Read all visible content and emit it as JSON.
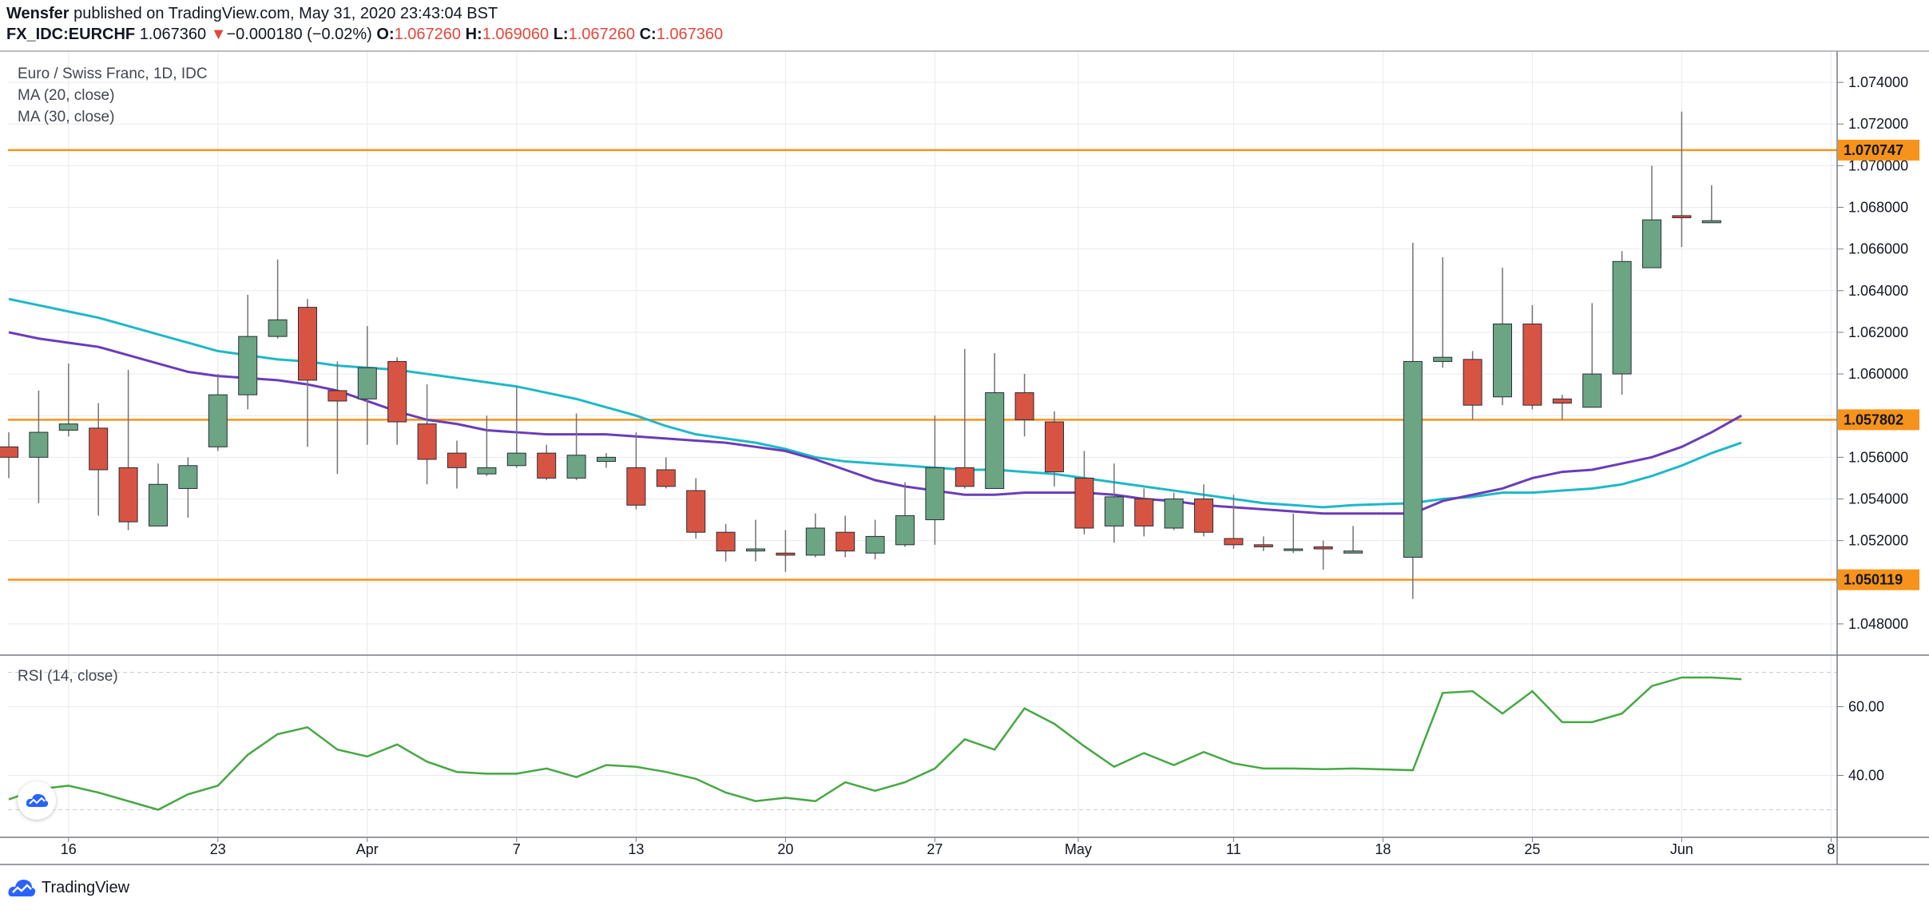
{
  "header": {
    "author": "Wensfer",
    "published_text": "published on TradingView.com, May 31, 2020 23:43:04 BST",
    "symbol": "FX_IDC:EURCHF",
    "timeframe": "1D",
    "last": "1.067360",
    "change_arrow": "▼",
    "change": "−0.000180 (−0.02%)",
    "o_label": "O:",
    "o_value": "1.067260",
    "h_label": "H:",
    "h_value": "1.069060",
    "l_label": "L:",
    "l_value": "1.067260",
    "c_label": "C:",
    "c_value": "1.067360"
  },
  "legend": {
    "title": "Euro / Swiss Franc, 1D, IDC",
    "ma20": "MA (20, close)",
    "ma30": "MA (30, close)",
    "rsi": "RSI (14, close)"
  },
  "brand": {
    "name": "TradingView"
  },
  "colors": {
    "up": "#6ba583",
    "down": "#d75442",
    "wick": "#737375",
    "ma20": "#6a3db8",
    "ma30": "#1fb8c8",
    "rsi": "#46a843",
    "hline": "#f7931a",
    "grid": "#e8eaee"
  },
  "chart_data": [
    {
      "type": "candlestick",
      "title": "Euro / Swiss Franc, 1D, IDC",
      "ylim": [
        1.0465,
        1.0755
      ],
      "y_ticks": [
        "1.048000",
        "1.050000",
        "1.052000",
        "1.054000",
        "1.056000",
        "1.058000",
        "1.060000",
        "1.062000",
        "1.064000",
        "1.066000",
        "1.068000",
        "1.070000",
        "1.072000",
        "1.074000"
      ],
      "x_ticks": [
        "16",
        "23",
        "Apr",
        "7",
        "13",
        "20",
        "27",
        "May",
        "11",
        "18",
        "25",
        "Jun",
        "8"
      ],
      "horizontal_levels": [
        "1.070747",
        "1.057802",
        "1.050119"
      ],
      "candles": [
        {
          "d": "2020-03-12",
          "o": 1.0565,
          "h": 1.0572,
          "l": 1.055,
          "c": 1.056
        },
        {
          "d": "2020-03-13",
          "o": 1.056,
          "h": 1.0592,
          "l": 1.0538,
          "c": 1.0572
        },
        {
          "d": "2020-03-16",
          "o": 1.0573,
          "h": 1.0605,
          "l": 1.057,
          "c": 1.0576
        },
        {
          "d": "2020-03-17",
          "o": 1.0574,
          "h": 1.0586,
          "l": 1.0532,
          "c": 1.0554
        },
        {
          "d": "2020-03-18",
          "o": 1.0555,
          "h": 1.0602,
          "l": 1.0525,
          "c": 1.0529
        },
        {
          "d": "2020-03-19",
          "o": 1.0527,
          "h": 1.0557,
          "l": 1.0527,
          "c": 1.0547
        },
        {
          "d": "2020-03-20",
          "o": 1.0545,
          "h": 1.056,
          "l": 1.0531,
          "c": 1.0556
        },
        {
          "d": "2020-03-23",
          "o": 1.0565,
          "h": 1.06,
          "l": 1.0563,
          "c": 1.059
        },
        {
          "d": "2020-03-24",
          "o": 1.059,
          "h": 1.0638,
          "l": 1.0583,
          "c": 1.0618
        },
        {
          "d": "2020-03-25",
          "o": 1.0618,
          "h": 1.0655,
          "l": 1.0617,
          "c": 1.0626
        },
        {
          "d": "2020-03-26",
          "o": 1.0632,
          "h": 1.0636,
          "l": 1.0565,
          "c": 1.0597
        },
        {
          "d": "2020-03-27",
          "o": 1.0592,
          "h": 1.0606,
          "l": 1.0552,
          "c": 1.0587
        },
        {
          "d": "2020-03-30",
          "o": 1.0588,
          "h": 1.0623,
          "l": 1.0566,
          "c": 1.0603
        },
        {
          "d": "2020-03-31",
          "o": 1.0606,
          "h": 1.0608,
          "l": 1.0566,
          "c": 1.0577
        },
        {
          "d": "2020-04-01",
          "o": 1.0576,
          "h": 1.0595,
          "l": 1.0547,
          "c": 1.0559
        },
        {
          "d": "2020-04-02",
          "o": 1.0562,
          "h": 1.0568,
          "l": 1.0545,
          "c": 1.0555
        },
        {
          "d": "2020-04-03",
          "o": 1.0552,
          "h": 1.058,
          "l": 1.0551,
          "c": 1.0555
        },
        {
          "d": "2020-04-06",
          "o": 1.0556,
          "h": 1.0594,
          "l": 1.0555,
          "c": 1.0562
        },
        {
          "d": "2020-04-07",
          "o": 1.0562,
          "h": 1.0566,
          "l": 1.0549,
          "c": 1.055
        },
        {
          "d": "2020-04-08",
          "o": 1.055,
          "h": 1.0581,
          "l": 1.0549,
          "c": 1.0561
        },
        {
          "d": "2020-04-09",
          "o": 1.0558,
          "h": 1.0562,
          "l": 1.0555,
          "c": 1.056
        },
        {
          "d": "2020-04-10",
          "o": 1.0555,
          "h": 1.0572,
          "l": 1.0535,
          "c": 1.0537
        },
        {
          "d": "2020-04-13",
          "o": 1.0554,
          "h": 1.056,
          "l": 1.0545,
          "c": 1.0546
        },
        {
          "d": "2020-04-14",
          "o": 1.0544,
          "h": 1.055,
          "l": 1.0521,
          "c": 1.0524
        },
        {
          "d": "2020-04-15",
          "o": 1.0524,
          "h": 1.0528,
          "l": 1.051,
          "c": 1.0515
        },
        {
          "d": "2020-04-16",
          "o": 1.0515,
          "h": 1.053,
          "l": 1.051,
          "c": 1.0516
        },
        {
          "d": "2020-04-17",
          "o": 1.0514,
          "h": 1.0525,
          "l": 1.0505,
          "c": 1.0513
        },
        {
          "d": "2020-04-20",
          "o": 1.0513,
          "h": 1.0533,
          "l": 1.0512,
          "c": 1.0526
        },
        {
          "d": "2020-04-21",
          "o": 1.0524,
          "h": 1.0532,
          "l": 1.0512,
          "c": 1.0515
        },
        {
          "d": "2020-04-22",
          "o": 1.0514,
          "h": 1.053,
          "l": 1.0511,
          "c": 1.0522
        },
        {
          "d": "2020-04-23",
          "o": 1.0518,
          "h": 1.0548,
          "l": 1.0517,
          "c": 1.0532
        },
        {
          "d": "2020-04-24",
          "o": 1.053,
          "h": 1.058,
          "l": 1.0518,
          "c": 1.0555
        },
        {
          "d": "2020-04-27",
          "o": 1.0555,
          "h": 1.0612,
          "l": 1.0545,
          "c": 1.0546
        },
        {
          "d": "2020-04-28",
          "o": 1.0545,
          "h": 1.061,
          "l": 1.0545,
          "c": 1.0591
        },
        {
          "d": "2020-04-29",
          "o": 1.0591,
          "h": 1.06,
          "l": 1.057,
          "c": 1.0578
        },
        {
          "d": "2020-04-30",
          "o": 1.0577,
          "h": 1.0582,
          "l": 1.0546,
          "c": 1.0553
        },
        {
          "d": "2020-05-01",
          "o": 1.055,
          "h": 1.0563,
          "l": 1.0523,
          "c": 1.0526
        },
        {
          "d": "2020-05-04",
          "o": 1.0527,
          "h": 1.0557,
          "l": 1.0519,
          "c": 1.0541
        },
        {
          "d": "2020-05-05",
          "o": 1.054,
          "h": 1.0545,
          "l": 1.0522,
          "c": 1.0527
        },
        {
          "d": "2020-05-06",
          "o": 1.0526,
          "h": 1.0543,
          "l": 1.0525,
          "c": 1.054
        },
        {
          "d": "2020-05-07",
          "o": 1.054,
          "h": 1.0547,
          "l": 1.0522,
          "c": 1.0524
        },
        {
          "d": "2020-05-08",
          "o": 1.0521,
          "h": 1.0542,
          "l": 1.0516,
          "c": 1.0518
        },
        {
          "d": "2020-05-11",
          "o": 1.0518,
          "h": 1.0522,
          "l": 1.0515,
          "c": 1.0517
        },
        {
          "d": "2020-05-12",
          "o": 1.0516,
          "h": 1.0533,
          "l": 1.0514,
          "c": 1.0516
        },
        {
          "d": "2020-05-13",
          "o": 1.0517,
          "h": 1.052,
          "l": 1.0506,
          "c": 1.0516
        },
        {
          "d": "2020-05-14",
          "o": 1.0514,
          "h": 1.0527,
          "l": 1.0514,
          "c": 1.0515
        },
        {
          "d": "2020-05-18",
          "o": 1.0512,
          "h": 1.0663,
          "l": 1.0492,
          "c": 1.0606
        },
        {
          "d": "2020-05-19",
          "o": 1.0606,
          "h": 1.0656,
          "l": 1.0603,
          "c": 1.0608
        },
        {
          "d": "2020-05-20",
          "o": 1.0607,
          "h": 1.0611,
          "l": 1.0578,
          "c": 1.0585
        },
        {
          "d": "2020-05-21",
          "o": 1.0589,
          "h": 1.0651,
          "l": 1.0585,
          "c": 1.0624
        },
        {
          "d": "2020-05-22",
          "o": 1.0624,
          "h": 1.0633,
          "l": 1.0583,
          "c": 1.0585
        },
        {
          "d": "2020-05-25",
          "o": 1.0588,
          "h": 1.059,
          "l": 1.0578,
          "c": 1.0586
        },
        {
          "d": "2020-05-26",
          "o": 1.0584,
          "h": 1.0634,
          "l": 1.0584,
          "c": 1.06
        },
        {
          "d": "2020-05-27",
          "o": 1.06,
          "h": 1.0659,
          "l": 1.059,
          "c": 1.0654
        },
        {
          "d": "2020-05-28",
          "o": 1.0651,
          "h": 1.07,
          "l": 1.0651,
          "c": 1.0674
        },
        {
          "d": "2020-05-29",
          "o": 1.0676,
          "h": 1.0726,
          "l": 1.0661,
          "c": 1.0675
        },
        {
          "d": "2020-05-31",
          "o": 1.06726,
          "h": 1.06906,
          "l": 1.06726,
          "c": 1.06736
        }
      ],
      "series": [
        {
          "name": "MA (20, close)",
          "values": [
            1.062,
            1.0617,
            1.0615,
            1.0613,
            1.0609,
            1.0605,
            1.0601,
            1.0599,
            1.0598,
            1.0597,
            1.0595,
            1.0592,
            1.0587,
            1.0582,
            1.0578,
            1.0576,
            1.0573,
            1.0572,
            1.0571,
            1.0571,
            1.0571,
            1.057,
            1.0569,
            1.0568,
            1.0567,
            1.0565,
            1.0563,
            1.0559,
            1.0554,
            1.0549,
            1.0546,
            1.0544,
            1.0542,
            1.0542,
            1.0543,
            1.0543,
            1.0543,
            1.0542,
            1.054,
            1.0539,
            1.0537,
            1.0536,
            1.0535,
            1.0534,
            1.0533,
            1.0533,
            1.0533,
            1.0539,
            1.0542,
            1.0545,
            1.055,
            1.0553,
            1.0554,
            1.0557,
            1.056,
            1.0565,
            1.0572,
            1.058
          ]
        },
        {
          "name": "MA (30, close)",
          "values": [
            1.0636,
            1.0633,
            1.063,
            1.0627,
            1.0623,
            1.0619,
            1.0615,
            1.0611,
            1.0609,
            1.0607,
            1.0606,
            1.0604,
            1.0603,
            1.0602,
            1.06,
            1.0598,
            1.0596,
            1.0594,
            1.0591,
            1.0588,
            1.0584,
            1.058,
            1.0575,
            1.0571,
            1.0569,
            1.0567,
            1.0564,
            1.056,
            1.0558,
            1.0557,
            1.0556,
            1.0555,
            1.0554,
            1.0554,
            1.0553,
            1.0552,
            1.055,
            1.0548,
            1.0546,
            1.0544,
            1.0542,
            1.054,
            1.0538,
            1.0537,
            1.0536,
            1.0537,
            1.0538,
            1.054,
            1.0541,
            1.0543,
            1.0543,
            1.0544,
            1.0545,
            1.0547,
            1.0551,
            1.0556,
            1.0562,
            1.0567
          ]
        }
      ]
    },
    {
      "type": "line",
      "title": "RSI (14, close)",
      "ylim": [
        25,
        75
      ],
      "y_ticks": [
        "40.00",
        "60.00"
      ],
      "levels": [
        30,
        70
      ],
      "series": [
        {
          "name": "RSI (14, close)",
          "values": [
            33.0,
            36.0,
            37.0,
            35.0,
            32.5,
            30.0,
            34.5,
            37.0,
            46.0,
            52.0,
            54.0,
            47.5,
            45.5,
            49.0,
            44.0,
            41.0,
            40.5,
            40.5,
            42.0,
            39.5,
            43.0,
            42.5,
            41.0,
            39.0,
            35.0,
            32.5,
            33.5,
            32.5,
            38.0,
            35.5,
            38.0,
            42.0,
            50.5,
            47.5,
            59.5,
            55.0,
            48.5,
            42.5,
            46.5,
            43.0,
            46.8,
            43.5,
            42.0,
            42.0,
            41.8,
            42.0,
            41.5,
            64.0,
            64.5,
            58.0,
            64.5,
            55.5,
            55.5,
            58.0,
            66.0,
            68.5,
            68.5,
            68.0
          ]
        }
      ]
    }
  ]
}
